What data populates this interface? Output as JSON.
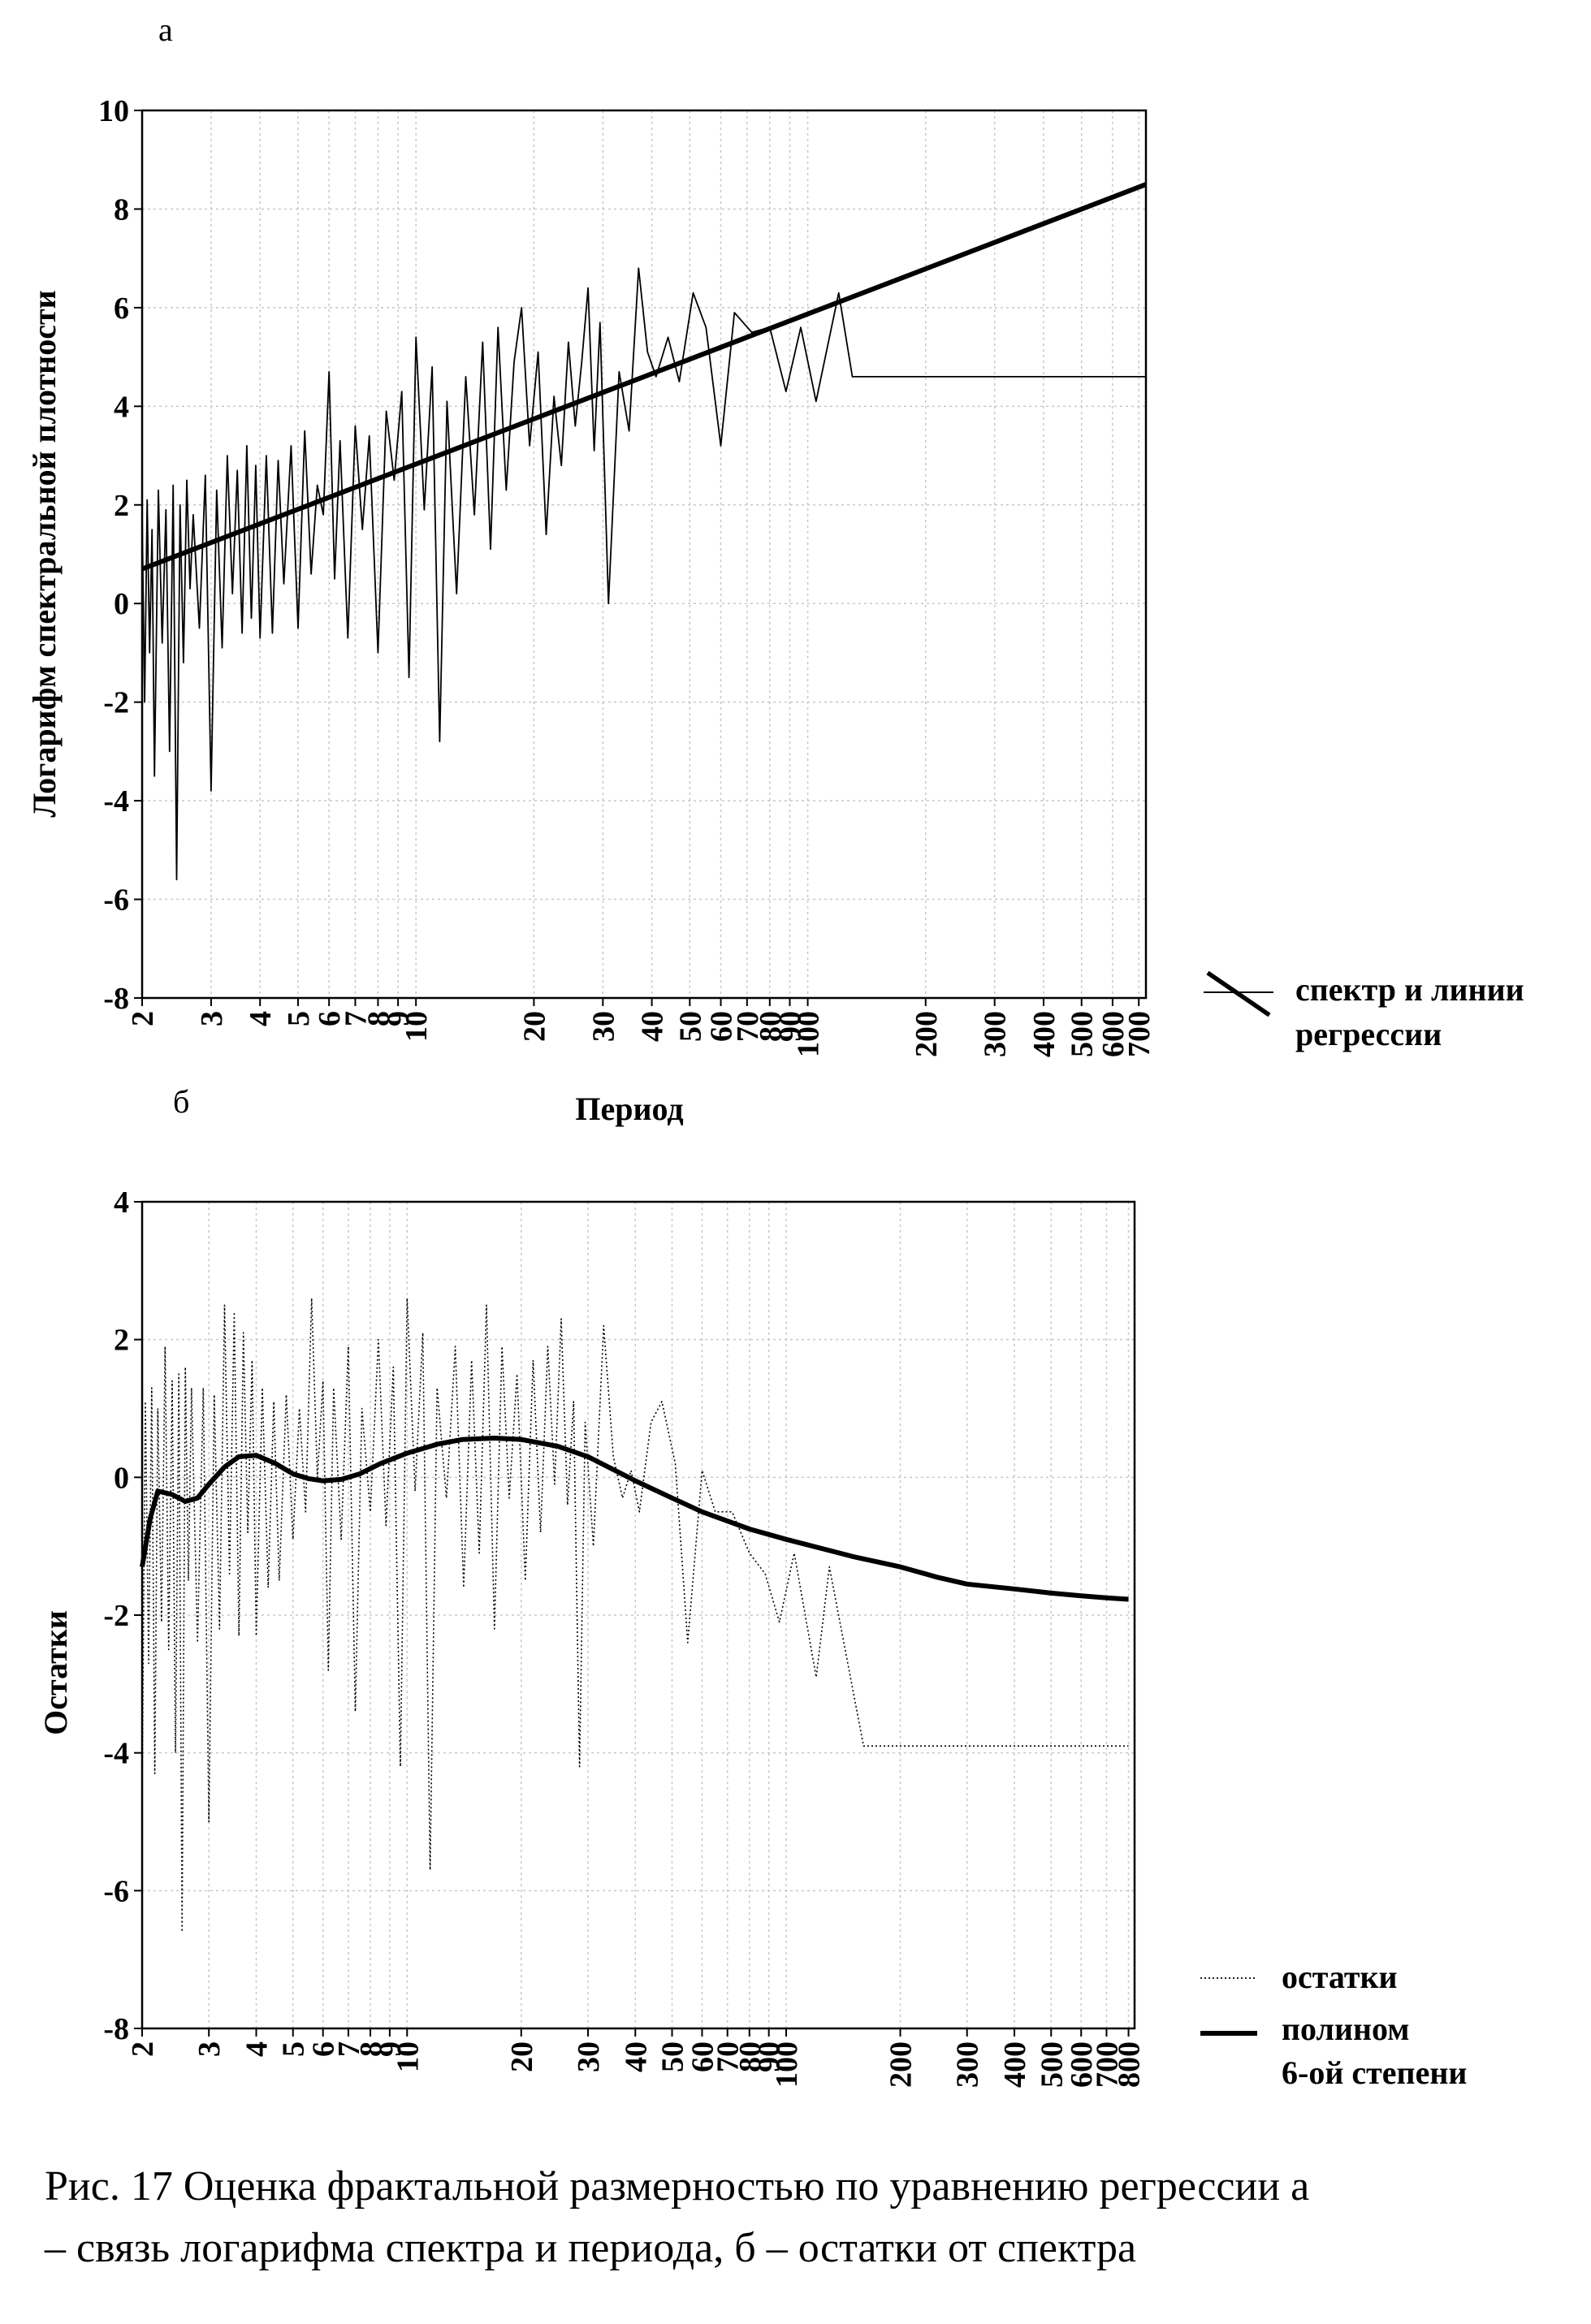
{
  "caption": {
    "line1": "Рис. 17 Оценка фрактальной размерностью по уравнению регрессии  а",
    "line2": "– связь логарифма спектра и периода, б – остатки от спектра"
  },
  "chart_data": [
    {
      "type": "line",
      "panel_label": "а",
      "xlabel": "Период",
      "ylabel": "Логарифм спектральной плотности",
      "xscale": "log",
      "xlim": [
        2,
        730
      ],
      "ylim": [
        -8,
        10
      ],
      "grid": true,
      "legend_position": "right-bottom",
      "xticks": [
        2,
        3,
        4,
        5,
        6,
        7,
        8,
        9,
        10,
        20,
        30,
        40,
        50,
        60,
        70,
        80,
        90,
        100,
        200,
        300,
        400,
        500,
        600,
        700
      ],
      "xtick_labels": [
        "2",
        "3",
        "4",
        "5",
        "6",
        "7",
        "8",
        "9",
        "10",
        "20",
        "30",
        "40",
        "50",
        "60",
        "70",
        "80",
        "90",
        "100",
        "200",
        "300",
        "400",
        "500",
        "600",
        "700"
      ],
      "yticks": [
        -8,
        -6,
        -4,
        -2,
        0,
        2,
        4,
        6,
        8,
        10
      ],
      "ytick_labels": [
        "-8",
        "-6",
        "-4",
        "-2",
        "0",
        "2",
        "4",
        "6",
        "8",
        "10"
      ],
      "legend": [
        {
          "label": "спектр и линии регрессии",
          "style": "thin-and-thick"
        }
      ],
      "series": [
        {
          "role": "spectrum",
          "style": "thin",
          "x": [
            2.0,
            2.03,
            2.06,
            2.09,
            2.12,
            2.15,
            2.2,
            2.25,
            2.3,
            2.35,
            2.4,
            2.45,
            2.5,
            2.55,
            2.6,
            2.65,
            2.7,
            2.8,
            2.9,
            3.0,
            3.1,
            3.2,
            3.3,
            3.4,
            3.5,
            3.6,
            3.7,
            3.8,
            3.9,
            4.0,
            4.15,
            4.3,
            4.45,
            4.6,
            4.8,
            5.0,
            5.2,
            5.4,
            5.6,
            5.8,
            6.0,
            6.2,
            6.4,
            6.7,
            7.0,
            7.3,
            7.6,
            8.0,
            8.4,
            8.8,
            9.2,
            9.6,
            10.0,
            10.5,
            11.0,
            11.5,
            12.0,
            12.7,
            13.4,
            14.1,
            14.8,
            15.5,
            16.2,
            17.0,
            17.8,
            18.6,
            19.5,
            20.5,
            21.5,
            22.5,
            23.5,
            24.5,
            25.5,
            26.5,
            27.5,
            28.5,
            29.5,
            31.0,
            33.0,
            35.0,
            37.0,
            39.0,
            41.0,
            44.0,
            47.0,
            51.0,
            55.0,
            60.0,
            65.0,
            72.0,
            80.0,
            88.0,
            96.0,
            105.0,
            120.0,
            130.0,
            160.0,
            190.0,
            250.0,
            380.0,
            730.0
          ],
          "y": [
            1.8,
            -2.0,
            2.1,
            -1.0,
            1.5,
            -3.5,
            2.3,
            -0.8,
            1.9,
            -3.0,
            2.4,
            -5.6,
            2.0,
            -1.2,
            2.5,
            0.3,
            1.8,
            -0.5,
            2.6,
            -3.8,
            2.3,
            -0.9,
            3.0,
            0.2,
            2.7,
            -0.6,
            3.2,
            -0.3,
            2.8,
            -0.7,
            3.0,
            -0.6,
            2.9,
            0.4,
            3.2,
            -0.5,
            3.5,
            0.6,
            2.4,
            1.8,
            4.7,
            0.5,
            3.3,
            -0.7,
            3.6,
            1.5,
            3.4,
            -1.0,
            3.9,
            2.5,
            4.3,
            -1.5,
            5.4,
            1.9,
            4.8,
            -2.8,
            4.1,
            0.2,
            4.6,
            1.8,
            5.3,
            1.1,
            5.6,
            2.3,
            4.9,
            6.0,
            3.2,
            5.1,
            1.4,
            4.2,
            2.8,
            5.3,
            3.6,
            4.9,
            6.4,
            3.1,
            5.7,
            0.0,
            4.7,
            3.5,
            6.8,
            5.1,
            4.6,
            5.4,
            4.5,
            6.3,
            5.6,
            3.2,
            5.9,
            5.5,
            5.6,
            4.3,
            5.6,
            4.1,
            6.3,
            4.6,
            4.6,
            4.6,
            4.6,
            4.6,
            4.6
          ],
          "y_note": ""
        },
        {
          "role": "regression",
          "style": "thick",
          "x": [
            2,
            730
          ],
          "y": [
            0.7,
            8.5
          ]
        }
      ]
    },
    {
      "type": "line",
      "panel_label": "б",
      "xlabel": "Период",
      "ylabel": "Остатки",
      "xscale": "log",
      "xlim": [
        2,
        830
      ],
      "ylim": [
        -8,
        4
      ],
      "grid": true,
      "legend_position": "right-bottom",
      "xticks": [
        2,
        3,
        4,
        5,
        6,
        7,
        8,
        9,
        10,
        20,
        30,
        40,
        50,
        60,
        70,
        80,
        90,
        100,
        200,
        300,
        400,
        500,
        600,
        700,
        800
      ],
      "xtick_labels": [
        "2",
        "3",
        "4",
        "5",
        "6",
        "7",
        "8",
        "9",
        "10",
        "20",
        "30",
        "40",
        "50",
        "60",
        "70",
        "80",
        "90",
        "100",
        "200",
        "300",
        "400",
        "500",
        "600",
        "700",
        "800"
      ],
      "yticks": [
        -8,
        -6,
        -4,
        -2,
        0,
        2,
        4
      ],
      "ytick_labels": [
        "-8",
        "-6",
        "-4",
        "-2",
        "0",
        "2",
        "4"
      ],
      "legend": [
        {
          "label": "остатки",
          "style": "dotted"
        },
        {
          "label_lines": [
            "полином",
            "6-ой степени"
          ],
          "style": "thick"
        }
      ],
      "series": [
        {
          "name": "остатки",
          "style": "dotted",
          "x": [
            2.0,
            2.04,
            2.08,
            2.12,
            2.16,
            2.2,
            2.25,
            2.3,
            2.35,
            2.4,
            2.45,
            2.5,
            2.55,
            2.6,
            2.65,
            2.7,
            2.8,
            2.9,
            3.0,
            3.1,
            3.2,
            3.3,
            3.4,
            3.5,
            3.6,
            3.7,
            3.8,
            3.9,
            4.0,
            4.15,
            4.3,
            4.45,
            4.6,
            4.8,
            5.0,
            5.2,
            5.4,
            5.6,
            5.8,
            6.0,
            6.2,
            6.4,
            6.7,
            7.0,
            7.3,
            7.6,
            8.0,
            8.4,
            8.8,
            9.2,
            9.6,
            10.0,
            10.5,
            11.0,
            11.5,
            12.0,
            12.7,
            13.4,
            14.1,
            14.8,
            15.5,
            16.2,
            17.0,
            17.8,
            18.6,
            19.5,
            20.5,
            21.5,
            22.5,
            23.5,
            24.5,
            25.5,
            26.5,
            27.5,
            28.5,
            29.5,
            31.0,
            33.0,
            35.0,
            37.0,
            39.0,
            41.0,
            44.0,
            47.0,
            51.0,
            55.0,
            60.0,
            65.0,
            72.0,
            80.0,
            88.0,
            96.0,
            105.0,
            120.0,
            130.0,
            160.0,
            190.0,
            250.0,
            380.0,
            800.0
          ],
          "y": [
            -4.6,
            1.1,
            -2.7,
            1.3,
            -4.3,
            1.0,
            -2.1,
            1.9,
            -2.5,
            1.4,
            -4.0,
            1.5,
            -6.6,
            1.6,
            -1.5,
            1.3,
            -2.4,
            1.3,
            -5.0,
            1.2,
            -2.2,
            2.5,
            -1.4,
            2.4,
            -2.3,
            2.1,
            -0.8,
            1.7,
            -2.3,
            1.3,
            -1.6,
            1.1,
            -1.5,
            1.2,
            -0.9,
            1.0,
            -0.5,
            2.6,
            0.0,
            1.4,
            -2.8,
            1.3,
            -0.9,
            1.9,
            -3.4,
            1.0,
            -0.5,
            2.0,
            -0.7,
            1.6,
            -4.2,
            2.6,
            -0.2,
            2.1,
            -5.7,
            1.3,
            -0.3,
            1.9,
            -1.6,
            1.7,
            -1.1,
            2.5,
            -2.2,
            1.9,
            -0.3,
            1.5,
            -1.5,
            1.7,
            -0.8,
            1.9,
            -0.1,
            2.3,
            -0.4,
            1.1,
            -4.2,
            0.8,
            -1.0,
            2.2,
            0.3,
            -0.3,
            0.1,
            -0.5,
            0.8,
            1.1,
            0.2,
            -2.4,
            0.1,
            -0.5,
            -0.5,
            -1.1,
            -1.4,
            -2.1,
            -1.1,
            -2.9,
            -1.3,
            -3.9,
            -3.9,
            -3.9,
            -3.9,
            -3.9
          ]
        },
        {
          "name": "полином 6-ой степени",
          "style": "thick",
          "x": [
            2.0,
            2.1,
            2.2,
            2.4,
            2.6,
            2.8,
            3.0,
            3.3,
            3.6,
            4.0,
            4.5,
            5.0,
            5.5,
            6.0,
            6.7,
            7.5,
            8.5,
            10.0,
            12.0,
            14.0,
            17.0,
            20.0,
            25.0,
            30.0,
            40.0,
            50.0,
            60.0,
            80.0,
            100.0,
            150.0,
            200.0,
            250.0,
            300.0,
            400.0,
            500.0,
            600.0,
            700.0,
            800.0
          ],
          "y": [
            -1.3,
            -0.6,
            -0.2,
            -0.25,
            -0.35,
            -0.3,
            -0.1,
            0.15,
            0.3,
            0.32,
            0.2,
            0.05,
            -0.02,
            -0.05,
            -0.03,
            0.05,
            0.2,
            0.35,
            0.48,
            0.55,
            0.57,
            0.55,
            0.45,
            0.3,
            -0.05,
            -0.3,
            -0.5,
            -0.75,
            -0.9,
            -1.15,
            -1.3,
            -1.45,
            -1.55,
            -1.62,
            -1.68,
            -1.72,
            -1.75,
            -1.77
          ]
        }
      ]
    }
  ]
}
